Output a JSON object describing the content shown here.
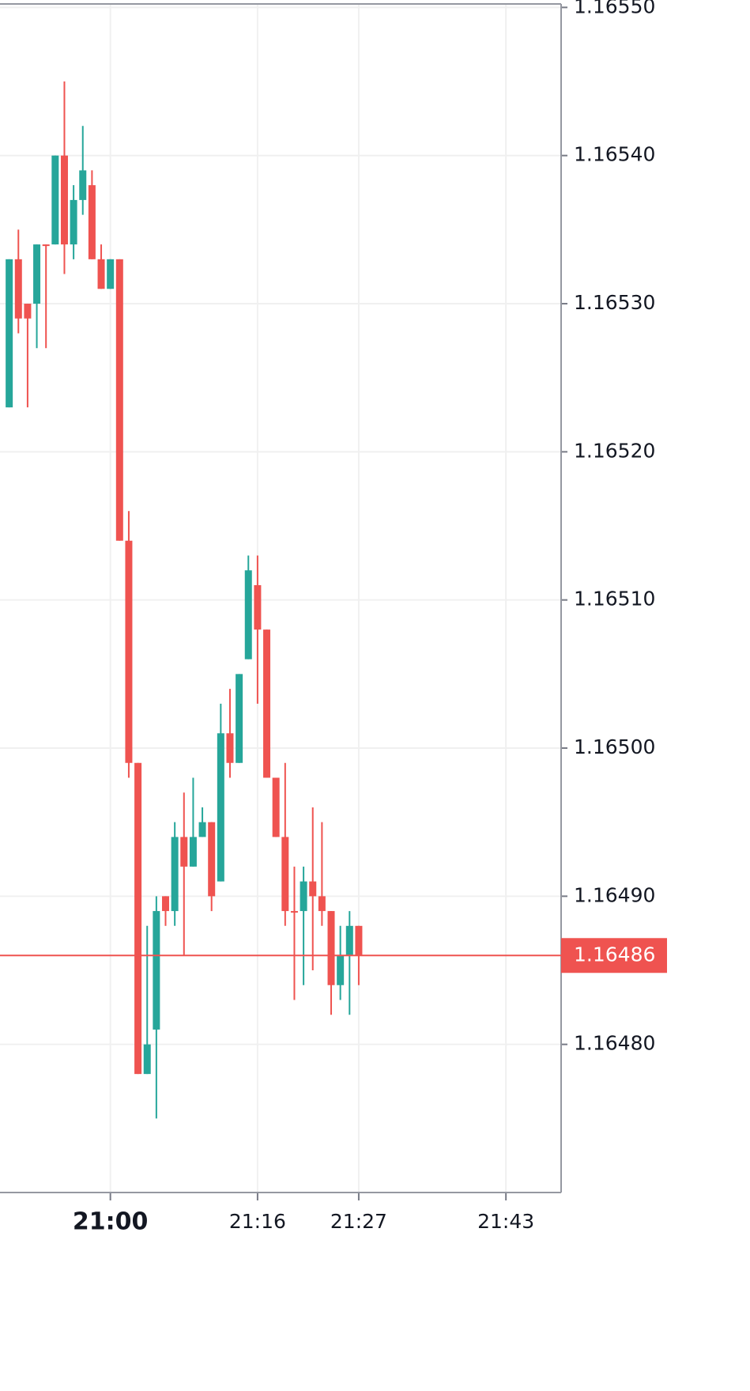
{
  "chart_data": {
    "type": "candlestick",
    "x": [
      "20:49",
      "20:50",
      "20:51",
      "20:52",
      "20:53",
      "20:54",
      "20:55",
      "20:56",
      "20:57",
      "20:58",
      "20:59",
      "21:00",
      "21:01",
      "21:02",
      "21:03",
      "21:04",
      "21:05",
      "21:06",
      "21:07",
      "21:08",
      "21:09",
      "21:10",
      "21:11",
      "21:12",
      "21:13",
      "21:14",
      "21:15",
      "21:16",
      "21:17",
      "21:18",
      "21:19",
      "21:20",
      "21:21",
      "21:22",
      "21:23",
      "21:24",
      "21:25",
      "21:26",
      "21:27"
    ],
    "open": [
      1.16523,
      1.16533,
      1.1653,
      1.1653,
      1.16534,
      1.16534,
      1.1654,
      1.16534,
      1.16537,
      1.16538,
      1.16533,
      1.16531,
      1.16533,
      1.16514,
      1.16499,
      1.16478,
      1.16481,
      1.1649,
      1.16489,
      1.16494,
      1.16492,
      1.16494,
      1.16495,
      1.16491,
      1.16501,
      1.16499,
      1.16506,
      1.16511,
      1.16508,
      1.16498,
      1.16494,
      1.16489,
      1.16489,
      1.16491,
      1.1649,
      1.16489,
      1.16484,
      1.16486,
      1.16488
    ],
    "high": [
      1.16533,
      1.16535,
      1.1653,
      1.16534,
      1.16534,
      1.1654,
      1.16545,
      1.16538,
      1.16542,
      1.16539,
      1.16534,
      1.16533,
      1.16533,
      1.16516,
      1.16499,
      1.16488,
      1.1649,
      1.1649,
      1.16495,
      1.16497,
      1.16498,
      1.16496,
      1.16495,
      1.16503,
      1.16504,
      1.16505,
      1.16513,
      1.16513,
      1.16508,
      1.16498,
      1.16499,
      1.16492,
      1.16492,
      1.16496,
      1.16495,
      1.16489,
      1.16488,
      1.16489,
      1.16488
    ],
    "low": [
      1.16523,
      1.16528,
      1.16523,
      1.16527,
      1.16527,
      1.16534,
      1.16532,
      1.16533,
      1.16536,
      1.16533,
      1.16531,
      1.16531,
      1.16514,
      1.16498,
      1.16478,
      1.16478,
      1.16475,
      1.16488,
      1.16488,
      1.16486,
      1.16492,
      1.16494,
      1.16489,
      1.16491,
      1.16498,
      1.16499,
      1.16506,
      1.16503,
      1.16498,
      1.16494,
      1.16488,
      1.16483,
      1.16484,
      1.16485,
      1.16488,
      1.16482,
      1.16483,
      1.16482,
      1.16484
    ],
    "close": [
      1.16533,
      1.16529,
      1.16529,
      1.16534,
      1.16534,
      1.1654,
      1.16534,
      1.16537,
      1.16539,
      1.16533,
      1.16531,
      1.16533,
      1.16514,
      1.16499,
      1.16478,
      1.1648,
      1.16489,
      1.16489,
      1.16494,
      1.16492,
      1.16494,
      1.16495,
      1.1649,
      1.16501,
      1.16499,
      1.16505,
      1.16512,
      1.16508,
      1.16498,
      1.16494,
      1.16489,
      1.16489,
      1.16491,
      1.1649,
      1.16489,
      1.16484,
      1.16486,
      1.16488,
      1.16486
    ],
    "up_color": "#26a69a",
    "down_color": "#ef5350",
    "xlim": [
      "20:48",
      "21:49"
    ],
    "xticks": [
      "21:00",
      "21:16",
      "21:27",
      "21:43"
    ],
    "ylim": [
      1.1647,
      1.165505
    ],
    "yticks": [
      {
        "value": 1.1655,
        "label": "1.16550"
      },
      {
        "value": 1.1654,
        "label": "1.16540"
      },
      {
        "value": 1.1653,
        "label": "1.16530"
      },
      {
        "value": 1.1652,
        "label": "1.16520"
      },
      {
        "value": 1.1651,
        "label": "1.16510"
      },
      {
        "value": 1.165,
        "label": "1.16500"
      },
      {
        "value": 1.1649,
        "label": "1.16490"
      },
      {
        "value": 1.1648,
        "label": "1.16480"
      }
    ],
    "last_price": {
      "value": 1.16486,
      "label": "1.16486",
      "color": "#ef5350"
    },
    "grid": true
  }
}
